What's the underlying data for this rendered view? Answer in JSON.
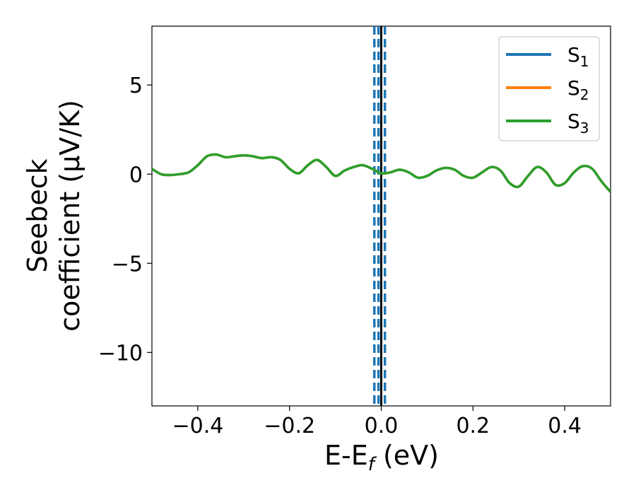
{
  "chart_data": {
    "type": "line",
    "xlabel": "E-E",
    "xlabel_sub": "f",
    "xlabel_unit": " (eV)",
    "ylabel_line1": "Seebeck",
    "ylabel_line2": "coefficient  (μV/K)",
    "xlim": [
      -0.5,
      0.5
    ],
    "ylim": [
      -13,
      8.3
    ],
    "xticks": [
      -0.4,
      -0.2,
      0.0,
      0.2,
      0.4
    ],
    "xtick_labels": [
      "−0.4",
      "−0.2",
      "0.0",
      "0.2",
      "0.4"
    ],
    "yticks": [
      -10,
      -5,
      0,
      5
    ],
    "ytick_labels": [
      "−10",
      "−5",
      "0",
      "5"
    ],
    "legend_placement": "top-right",
    "vlines": [
      {
        "x": 0.0,
        "color": "#000000",
        "style": "solid"
      },
      {
        "x": -0.015,
        "color": "#1f77b4",
        "style": "dashed"
      },
      {
        "x": -0.006,
        "color": "#1f77b4",
        "style": "dashed"
      },
      {
        "x": 0.008,
        "color": "#1f77b4",
        "style": "dashed"
      }
    ],
    "series": [
      {
        "name": "S",
        "sub": "1",
        "color": "#1f77b4",
        "x": [
          -0.5,
          -0.48,
          -0.46,
          -0.44,
          -0.42,
          -0.4,
          -0.38,
          -0.36,
          -0.34,
          -0.32,
          -0.3,
          -0.28,
          -0.26,
          -0.24,
          -0.22,
          -0.2,
          -0.18,
          -0.16,
          -0.14,
          -0.12,
          -0.1,
          -0.08,
          -0.06,
          -0.04,
          -0.02,
          0.0,
          0.02,
          0.04,
          0.06,
          0.08,
          0.1,
          0.12,
          0.14,
          0.16,
          0.18,
          0.2,
          0.22,
          0.24,
          0.26,
          0.28,
          0.3,
          0.32,
          0.34,
          0.36,
          0.38,
          0.4,
          0.42,
          0.44,
          0.46,
          0.48,
          0.5
        ],
        "y": [
          0.3,
          0.0,
          -0.05,
          0.0,
          0.1,
          0.5,
          1.0,
          1.1,
          0.95,
          1.0,
          1.05,
          1.0,
          0.9,
          0.95,
          0.8,
          0.3,
          0.05,
          0.5,
          0.8,
          0.4,
          -0.1,
          0.2,
          0.4,
          0.5,
          0.3,
          0.05,
          0.1,
          0.25,
          0.1,
          -0.2,
          -0.1,
          0.2,
          0.35,
          0.25,
          -0.1,
          -0.2,
          0.1,
          0.4,
          0.2,
          -0.5,
          -0.7,
          -0.1,
          0.4,
          0.1,
          -0.6,
          -0.5,
          0.1,
          0.45,
          0.3,
          -0.4,
          -1.0
        ]
      },
      {
        "name": "S",
        "sub": "2",
        "color": "#ff7f0e",
        "x": [
          -0.5,
          -0.48,
          -0.46,
          -0.44,
          -0.42,
          -0.4,
          -0.38,
          -0.36,
          -0.34,
          -0.32,
          -0.3,
          -0.28,
          -0.26,
          -0.24,
          -0.22,
          -0.2,
          -0.18,
          -0.16,
          -0.14,
          -0.12,
          -0.1,
          -0.08,
          -0.06,
          -0.04,
          -0.02,
          0.0,
          0.02,
          0.04,
          0.06,
          0.08,
          0.1,
          0.12,
          0.14,
          0.16,
          0.18,
          0.2,
          0.22,
          0.24,
          0.26,
          0.28,
          0.3,
          0.32,
          0.34,
          0.36,
          0.38,
          0.4,
          0.42,
          0.44,
          0.46,
          0.48,
          0.5
        ],
        "y": [
          0.3,
          0.0,
          -0.05,
          0.0,
          0.1,
          0.5,
          1.0,
          1.1,
          0.95,
          1.0,
          1.05,
          1.0,
          0.9,
          0.95,
          0.8,
          0.3,
          0.05,
          0.5,
          0.8,
          0.4,
          -0.1,
          0.2,
          0.4,
          0.5,
          0.3,
          0.05,
          0.1,
          0.25,
          0.1,
          -0.2,
          -0.1,
          0.2,
          0.35,
          0.25,
          -0.1,
          -0.2,
          0.1,
          0.4,
          0.2,
          -0.5,
          -0.7,
          -0.1,
          0.4,
          0.1,
          -0.6,
          -0.5,
          0.1,
          0.45,
          0.3,
          -0.4,
          -1.0
        ]
      },
      {
        "name": "S",
        "sub": "3",
        "color": "#2ca02c",
        "x": [
          -0.5,
          -0.48,
          -0.46,
          -0.44,
          -0.42,
          -0.4,
          -0.38,
          -0.36,
          -0.34,
          -0.32,
          -0.3,
          -0.28,
          -0.26,
          -0.24,
          -0.22,
          -0.2,
          -0.18,
          -0.16,
          -0.14,
          -0.12,
          -0.1,
          -0.08,
          -0.06,
          -0.04,
          -0.02,
          0.0,
          0.02,
          0.04,
          0.06,
          0.08,
          0.1,
          0.12,
          0.14,
          0.16,
          0.18,
          0.2,
          0.22,
          0.24,
          0.26,
          0.28,
          0.3,
          0.32,
          0.34,
          0.36,
          0.38,
          0.4,
          0.42,
          0.44,
          0.46,
          0.48,
          0.5
        ],
        "y": [
          0.3,
          0.0,
          -0.05,
          0.0,
          0.1,
          0.5,
          1.0,
          1.1,
          0.95,
          1.0,
          1.05,
          1.0,
          0.9,
          0.95,
          0.8,
          0.3,
          0.05,
          0.5,
          0.8,
          0.4,
          -0.1,
          0.2,
          0.4,
          0.5,
          0.3,
          0.05,
          0.1,
          0.25,
          0.1,
          -0.2,
          -0.1,
          0.2,
          0.35,
          0.25,
          -0.1,
          -0.2,
          0.1,
          0.4,
          0.2,
          -0.5,
          -0.7,
          -0.1,
          0.4,
          0.1,
          -0.6,
          -0.5,
          0.1,
          0.45,
          0.3,
          -0.4,
          -1.0
        ]
      }
    ]
  }
}
